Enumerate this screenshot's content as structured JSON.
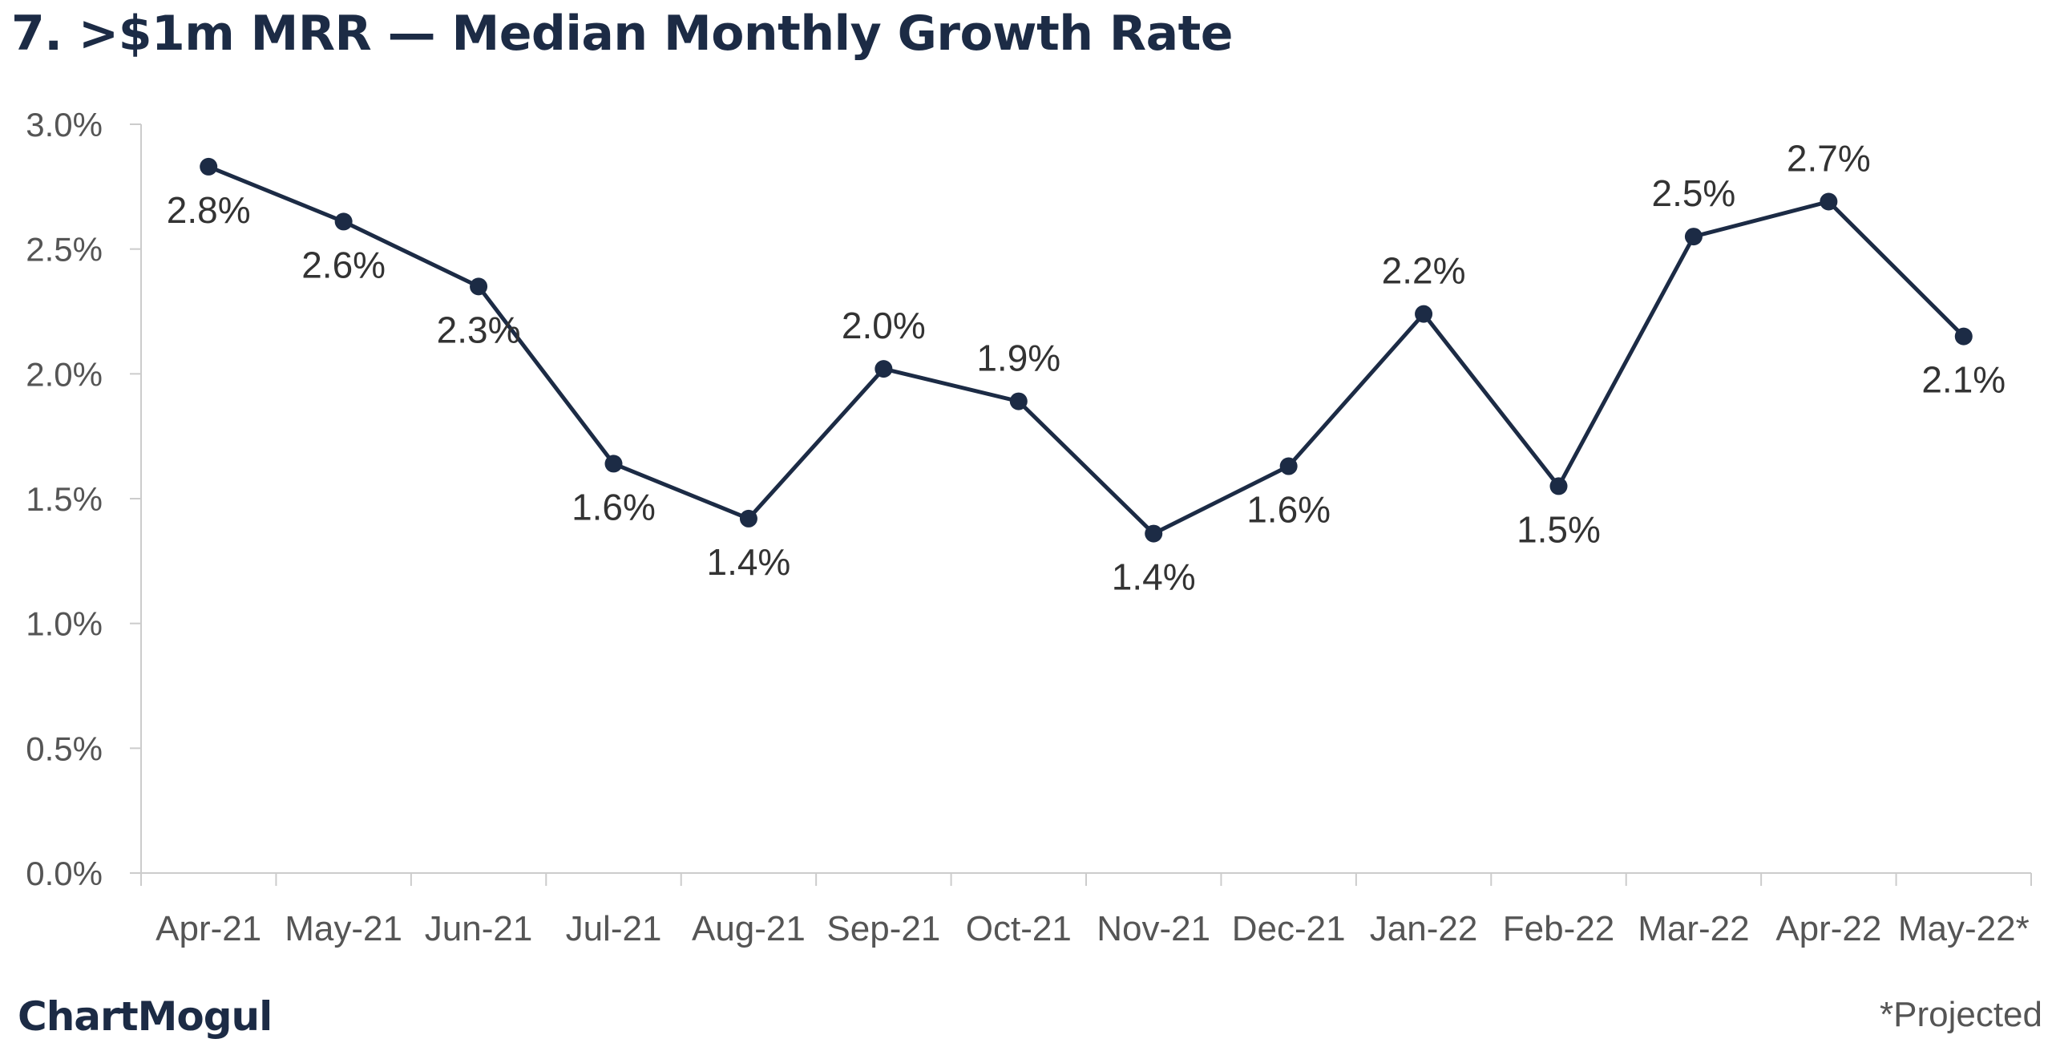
{
  "header": {
    "title": "7. >$1m MRR — Median Monthly Growth Rate"
  },
  "footer": {
    "brand": "ChartMogul",
    "footnote": "*Projected"
  },
  "colors": {
    "series": "#1c2b45",
    "axis": "#cccccc",
    "label": "#333333",
    "tick": "#555555"
  },
  "chart_data": {
    "type": "line",
    "categories": [
      "Apr-21",
      "May-21",
      "Jun-21",
      "Jul-21",
      "Aug-21",
      "Sep-21",
      "Oct-21",
      "Nov-21",
      "Dec-21",
      "Jan-22",
      "Feb-22",
      "Mar-22",
      "Apr-22",
      "May-22*"
    ],
    "series": [
      {
        "values": [
          2.83,
          2.61,
          2.35,
          1.64,
          1.42,
          2.02,
          1.89,
          1.36,
          1.63,
          2.24,
          1.55,
          2.55,
          2.69,
          2.15
        ],
        "labels": [
          "2.8%",
          "2.6%",
          "2.3%",
          "1.6%",
          "1.4%",
          "2.0%",
          "1.9%",
          "1.4%",
          "1.6%",
          "2.2%",
          "1.5%",
          "2.5%",
          "2.7%",
          "2.1%"
        ],
        "label_position": [
          "below",
          "below",
          "below",
          "below",
          "below",
          "above",
          "above",
          "below",
          "below",
          "above",
          "below",
          "above",
          "above",
          "below"
        ]
      }
    ],
    "y_ticks": [
      "0.0%",
      "0.5%",
      "1.0%",
      "1.5%",
      "2.0%",
      "2.5%",
      "3.0%"
    ],
    "ylim": [
      0,
      3
    ],
    "grid": false,
    "legend": "none",
    "markers": true
  }
}
